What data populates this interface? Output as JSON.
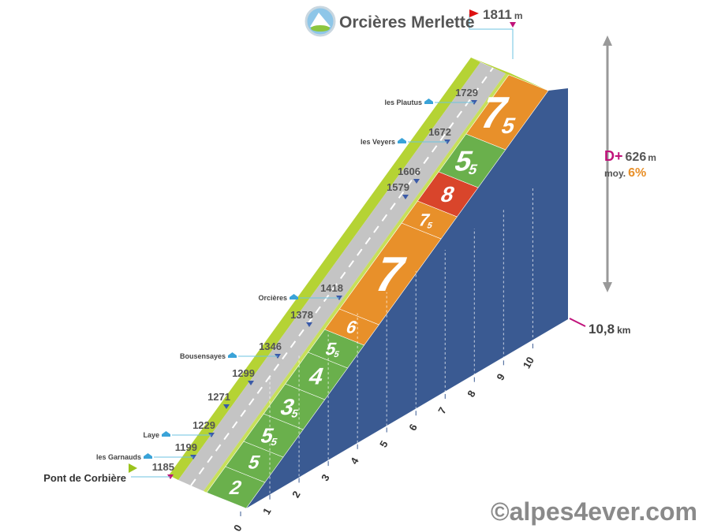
{
  "header": {
    "title": "Orcières Merlette",
    "summit_altitude": 1811,
    "summit_unit": "m"
  },
  "start": {
    "name": "Pont de Corbière",
    "altitude": 1185
  },
  "waypoints": [
    {
      "name": "les Garnauds",
      "altitude": 1199
    },
    {
      "name": "Laye",
      "altitude": 1229
    },
    {
      "altitude": 1271
    },
    {
      "altitude": 1299
    },
    {
      "name": "Bousensayes",
      "altitude": 1346
    },
    {
      "altitude": 1378
    },
    {
      "name": "Orcières",
      "altitude": 1418
    },
    {
      "altitude": 1579
    },
    {
      "altitude": 1606
    },
    {
      "name": "les Veyers",
      "altitude": 1672
    },
    {
      "name": "les Plautus",
      "altitude": 1729
    }
  ],
  "gradients": [
    {
      "main": "2",
      "color": "#6ab04c"
    },
    {
      "main": "5",
      "color": "#6ab04c"
    },
    {
      "main": "5",
      "sub": "5",
      "color": "#6ab04c"
    },
    {
      "main": "3",
      "sub": "5",
      "color": "#6ab04c"
    },
    {
      "main": "4",
      "color": "#6ab04c"
    },
    {
      "main": "5",
      "sub": "5",
      "color": "#6ab04c"
    },
    {
      "main": "6",
      "color": "#e8902a"
    },
    {
      "main": "7",
      "color": "#e8902a"
    },
    {
      "main": "7",
      "sub": "5",
      "color": "#e8902a"
    },
    {
      "main": "8",
      "color": "#d9452b"
    },
    {
      "main": "5",
      "sub": "5",
      "color": "#6ab04c"
    },
    {
      "main": "7",
      "sub": "5",
      "color": "#e8902a"
    }
  ],
  "km_ticks": [
    0,
    1,
    2,
    3,
    4,
    5,
    6,
    7,
    8,
    9,
    10
  ],
  "distance": {
    "value": "10,8",
    "unit": "km"
  },
  "stats": {
    "dplus_label": "D+",
    "dplus": 626,
    "dplus_unit": "m",
    "avg_label": "moy.",
    "avg": "6%"
  },
  "credit": "©alpes4ever.com"
}
